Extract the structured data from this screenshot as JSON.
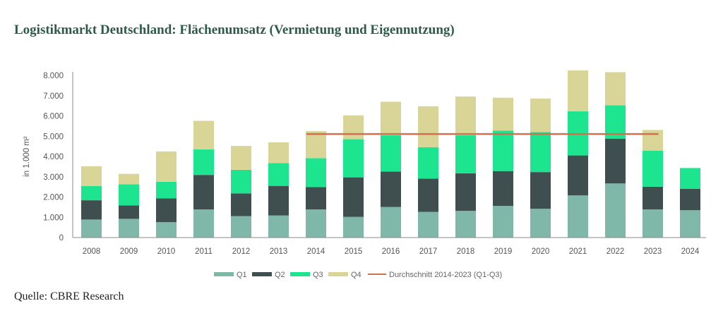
{
  "title": "Logistikmarkt Deutschland: Flächenumsatz (Vermietung und Eigennutzung)",
  "source": "Quelle: CBRE Research",
  "chart_data": {
    "type": "bar",
    "stacked": true,
    "title": "Logistikmarkt Deutschland: Flächenumsatz (Vermietung und Eigennutzung)",
    "ylabel": "in 1.000 m²",
    "xlabel": "",
    "ylim": [
      0,
      8000
    ],
    "yticks": [
      "0",
      "1.000",
      "2.000",
      "3.000",
      "4.000",
      "5.000",
      "6.000",
      "7.000",
      "8.000"
    ],
    "grid": false,
    "legend_position": "bottom",
    "categories": [
      "2008",
      "2009",
      "2010",
      "2011",
      "2012",
      "2013",
      "2014",
      "2015",
      "2016",
      "2017",
      "2018",
      "2019",
      "2020",
      "2021",
      "2022",
      "2023",
      "2024"
    ],
    "series": [
      {
        "name": "Q1",
        "color": "#7fb8a9",
        "values": [
          890,
          925,
          760,
          1390,
          1060,
          1090,
          1390,
          1020,
          1510,
          1270,
          1320,
          1560,
          1420,
          2080,
          2670,
          1390,
          1350
        ]
      },
      {
        "name": "Q2",
        "color": "#3f4f4f",
        "values": [
          950,
          660,
          1170,
          1700,
          1120,
          1460,
          1100,
          1950,
          1750,
          1640,
          1850,
          1720,
          1810,
          1970,
          2210,
          1120,
          1050
        ]
      },
      {
        "name": "Q3",
        "color": "#1de58f",
        "values": [
          700,
          1040,
          820,
          1260,
          1160,
          1120,
          1430,
          1880,
          1790,
          1550,
          1880,
          2000,
          1980,
          2180,
          1650,
          1780,
          1030
        ]
      },
      {
        "name": "Q4",
        "color": "#d9d597",
        "values": [
          980,
          520,
          1500,
          1410,
          1180,
          1030,
          1330,
          1180,
          1650,
          2020,
          1910,
          1620,
          1650,
          2020,
          1630,
          1020,
          null
        ]
      }
    ],
    "reference_line": {
      "name": "Durchschnitt 2014-2023 (Q1-Q3)",
      "color": "#d0704f",
      "value": 5110,
      "from": "2014",
      "to": "2023"
    }
  }
}
